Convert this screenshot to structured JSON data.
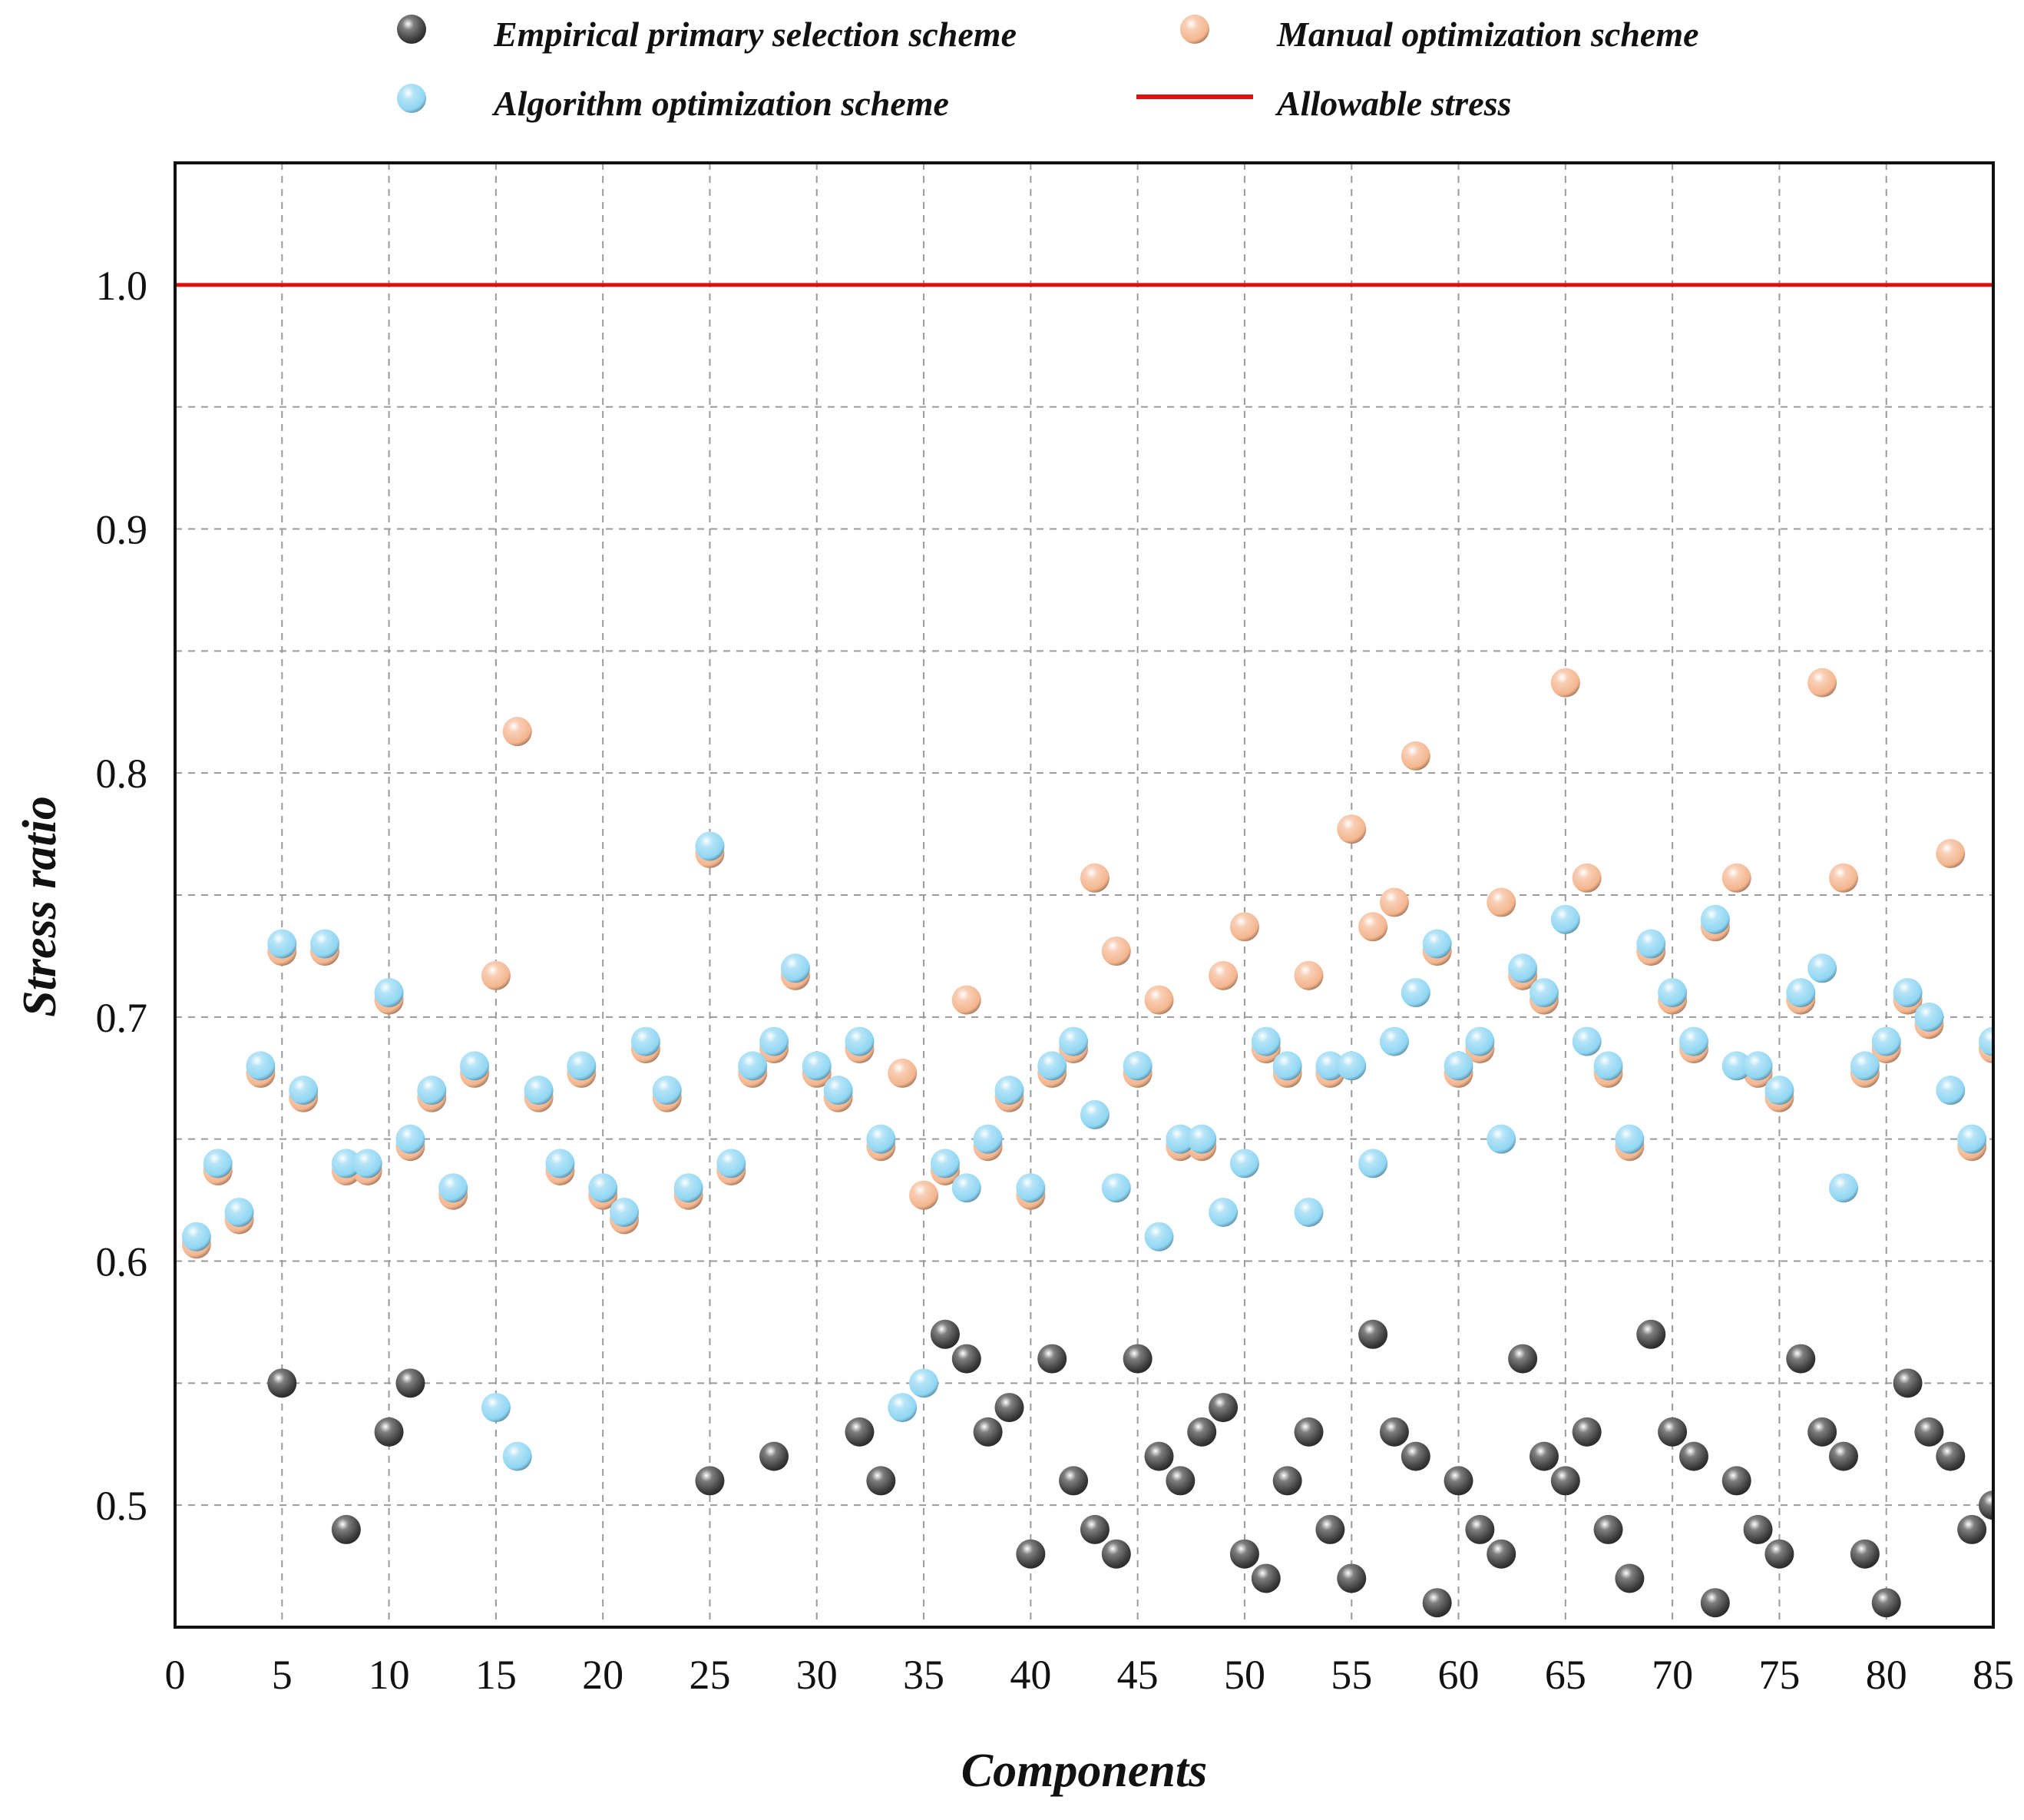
{
  "chart_data": {
    "type": "scatter",
    "xlabel": "Components",
    "ylabel": "Stress ratio",
    "xlim": [
      0,
      85
    ],
    "ylim": [
      0.45,
      1.05
    ],
    "x_ticks": [
      0,
      5,
      10,
      15,
      20,
      25,
      30,
      35,
      40,
      45,
      50,
      55,
      60,
      65,
      70,
      75,
      80,
      85
    ],
    "x_tick_labels": [
      "0",
      "5",
      "10",
      "15",
      "20",
      "25",
      "30",
      "35",
      "40",
      "45",
      "50",
      "55",
      "60",
      "65",
      "70",
      "75",
      "80",
      "85"
    ],
    "y_ticks": [
      0.5,
      0.6,
      0.7,
      0.8,
      0.9,
      1.0
    ],
    "y_tick_labels": [
      "0.5",
      "0.6",
      "0.7",
      "0.8",
      "0.9",
      "1.0"
    ],
    "grid": true,
    "legend_position": "top",
    "reference_line": {
      "name": "Allowable stress",
      "y": 1.0,
      "color": "#e01010"
    },
    "series": [
      {
        "name": "Empirical primary selection scheme",
        "color": "#3a3a3a",
        "points": [
          [
            5,
            0.55
          ],
          [
            8,
            0.49
          ],
          [
            10,
            0.53
          ],
          [
            11,
            0.55
          ],
          [
            25,
            0.51
          ],
          [
            28,
            0.52
          ],
          [
            32,
            0.53
          ],
          [
            33,
            0.51
          ],
          [
            36,
            0.57
          ],
          [
            37,
            0.56
          ],
          [
            38,
            0.53
          ],
          [
            39,
            0.54
          ],
          [
            40,
            0.48
          ],
          [
            41,
            0.56
          ],
          [
            42,
            0.51
          ],
          [
            43,
            0.49
          ],
          [
            44,
            0.48
          ],
          [
            45,
            0.56
          ],
          [
            46,
            0.52
          ],
          [
            47,
            0.51
          ],
          [
            48,
            0.53
          ],
          [
            49,
            0.54
          ],
          [
            50,
            0.48
          ],
          [
            51,
            0.47
          ],
          [
            52,
            0.51
          ],
          [
            53,
            0.53
          ],
          [
            54,
            0.49
          ],
          [
            55,
            0.47
          ],
          [
            56,
            0.57
          ],
          [
            57,
            0.53
          ],
          [
            58,
            0.52
          ],
          [
            59,
            0.46
          ],
          [
            60,
            0.51
          ],
          [
            61,
            0.49
          ],
          [
            62,
            0.48
          ],
          [
            63,
            0.56
          ],
          [
            64,
            0.52
          ],
          [
            65,
            0.51
          ],
          [
            66,
            0.53
          ],
          [
            67,
            0.49
          ],
          [
            68,
            0.47
          ],
          [
            69,
            0.57
          ],
          [
            70,
            0.53
          ],
          [
            71,
            0.52
          ],
          [
            72,
            0.46
          ],
          [
            73,
            0.51
          ],
          [
            74,
            0.49
          ],
          [
            75,
            0.48
          ],
          [
            76,
            0.56
          ],
          [
            77,
            0.53
          ],
          [
            78,
            0.52
          ],
          [
            79,
            0.48
          ],
          [
            80,
            0.46
          ],
          [
            81,
            0.55
          ],
          [
            82,
            0.53
          ],
          [
            83,
            0.52
          ],
          [
            84,
            0.49
          ],
          [
            85,
            0.5
          ]
        ]
      },
      {
        "name": "Manual optimization scheme",
        "color": "#f4b58e",
        "points": [
          [
            1,
            0.607
          ],
          [
            2,
            0.637
          ],
          [
            3,
            0.617
          ],
          [
            4,
            0.677
          ],
          [
            5,
            0.727
          ],
          [
            6,
            0.667
          ],
          [
            7,
            0.727
          ],
          [
            8,
            0.637
          ],
          [
            9,
            0.637
          ],
          [
            10,
            0.707
          ],
          [
            11,
            0.647
          ],
          [
            12,
            0.667
          ],
          [
            13,
            0.627
          ],
          [
            14,
            0.677
          ],
          [
            15,
            0.717
          ],
          [
            16,
            0.817
          ],
          [
            17,
            0.667
          ],
          [
            18,
            0.637
          ],
          [
            19,
            0.677
          ],
          [
            20,
            0.627
          ],
          [
            21,
            0.617
          ],
          [
            22,
            0.687
          ],
          [
            23,
            0.667
          ],
          [
            24,
            0.627
          ],
          [
            25,
            0.767
          ],
          [
            26,
            0.637
          ],
          [
            27,
            0.677
          ],
          [
            28,
            0.687
          ],
          [
            29,
            0.717
          ],
          [
            30,
            0.677
          ],
          [
            31,
            0.667
          ],
          [
            32,
            0.687
          ],
          [
            33,
            0.647
          ],
          [
            34,
            0.677
          ],
          [
            35,
            0.627
          ],
          [
            36,
            0.637
          ],
          [
            37,
            0.707
          ],
          [
            38,
            0.647
          ],
          [
            39,
            0.667
          ],
          [
            40,
            0.627
          ],
          [
            41,
            0.677
          ],
          [
            42,
            0.687
          ],
          [
            43,
            0.757
          ],
          [
            44,
            0.727
          ],
          [
            45,
            0.677
          ],
          [
            46,
            0.707
          ],
          [
            47,
            0.647
          ],
          [
            48,
            0.647
          ],
          [
            49,
            0.717
          ],
          [
            50,
            0.737
          ],
          [
            51,
            0.687
          ],
          [
            52,
            0.677
          ],
          [
            53,
            0.717
          ],
          [
            54,
            0.677
          ],
          [
            55,
            0.777
          ],
          [
            56,
            0.737
          ],
          [
            57,
            0.747
          ],
          [
            58,
            0.807
          ],
          [
            59,
            0.727
          ],
          [
            60,
            0.677
          ],
          [
            61,
            0.687
          ],
          [
            62,
            0.747
          ],
          [
            63,
            0.717
          ],
          [
            64,
            0.707
          ],
          [
            65,
            0.837
          ],
          [
            66,
            0.757
          ],
          [
            67,
            0.677
          ],
          [
            68,
            0.647
          ],
          [
            69,
            0.727
          ],
          [
            70,
            0.707
          ],
          [
            71,
            0.687
          ],
          [
            72,
            0.737
          ],
          [
            73,
            0.757
          ],
          [
            74,
            0.677
          ],
          [
            75,
            0.667
          ],
          [
            76,
            0.707
          ],
          [
            77,
            0.837
          ],
          [
            78,
            0.757
          ],
          [
            79,
            0.677
          ],
          [
            80,
            0.687
          ],
          [
            81,
            0.707
          ],
          [
            82,
            0.697
          ],
          [
            83,
            0.767
          ],
          [
            84,
            0.647
          ],
          [
            85,
            0.687
          ]
        ]
      },
      {
        "name": "Algorithm optimization scheme",
        "color": "#8fd6f3",
        "points": [
          [
            1,
            0.61
          ],
          [
            2,
            0.64
          ],
          [
            3,
            0.62
          ],
          [
            4,
            0.68
          ],
          [
            5,
            0.73
          ],
          [
            6,
            0.67
          ],
          [
            7,
            0.73
          ],
          [
            8,
            0.64
          ],
          [
            9,
            0.64
          ],
          [
            10,
            0.71
          ],
          [
            11,
            0.65
          ],
          [
            12,
            0.67
          ],
          [
            13,
            0.63
          ],
          [
            14,
            0.68
          ],
          [
            15,
            0.54
          ],
          [
            16,
            0.52
          ],
          [
            17,
            0.67
          ],
          [
            18,
            0.64
          ],
          [
            19,
            0.68
          ],
          [
            20,
            0.63
          ],
          [
            21,
            0.62
          ],
          [
            22,
            0.69
          ],
          [
            23,
            0.67
          ],
          [
            24,
            0.63
          ],
          [
            25,
            0.77
          ],
          [
            26,
            0.64
          ],
          [
            27,
            0.68
          ],
          [
            28,
            0.69
          ],
          [
            29,
            0.72
          ],
          [
            30,
            0.68
          ],
          [
            31,
            0.67
          ],
          [
            32,
            0.69
          ],
          [
            33,
            0.65
          ],
          [
            34,
            0.54
          ],
          [
            35,
            0.55
          ],
          [
            36,
            0.64
          ],
          [
            37,
            0.63
          ],
          [
            38,
            0.65
          ],
          [
            39,
            0.67
          ],
          [
            40,
            0.63
          ],
          [
            41,
            0.68
          ],
          [
            42,
            0.69
          ],
          [
            43,
            0.66
          ],
          [
            44,
            0.63
          ],
          [
            45,
            0.68
          ],
          [
            46,
            0.61
          ],
          [
            47,
            0.65
          ],
          [
            48,
            0.65
          ],
          [
            49,
            0.62
          ],
          [
            50,
            0.64
          ],
          [
            51,
            0.69
          ],
          [
            52,
            0.68
          ],
          [
            53,
            0.62
          ],
          [
            54,
            0.68
          ],
          [
            55,
            0.68
          ],
          [
            56,
            0.64
          ],
          [
            57,
            0.69
          ],
          [
            58,
            0.71
          ],
          [
            59,
            0.73
          ],
          [
            60,
            0.68
          ],
          [
            61,
            0.69
          ],
          [
            62,
            0.65
          ],
          [
            63,
            0.72
          ],
          [
            64,
            0.71
          ],
          [
            65,
            0.74
          ],
          [
            66,
            0.69
          ],
          [
            67,
            0.68
          ],
          [
            68,
            0.65
          ],
          [
            69,
            0.73
          ],
          [
            70,
            0.71
          ],
          [
            71,
            0.69
          ],
          [
            72,
            0.74
          ],
          [
            73,
            0.68
          ],
          [
            74,
            0.68
          ],
          [
            75,
            0.67
          ],
          [
            76,
            0.71
          ],
          [
            77,
            0.72
          ],
          [
            78,
            0.63
          ],
          [
            79,
            0.68
          ],
          [
            80,
            0.69
          ],
          [
            81,
            0.71
          ],
          [
            82,
            0.7
          ],
          [
            83,
            0.67
          ],
          [
            84,
            0.65
          ],
          [
            85,
            0.69
          ]
        ]
      }
    ]
  }
}
